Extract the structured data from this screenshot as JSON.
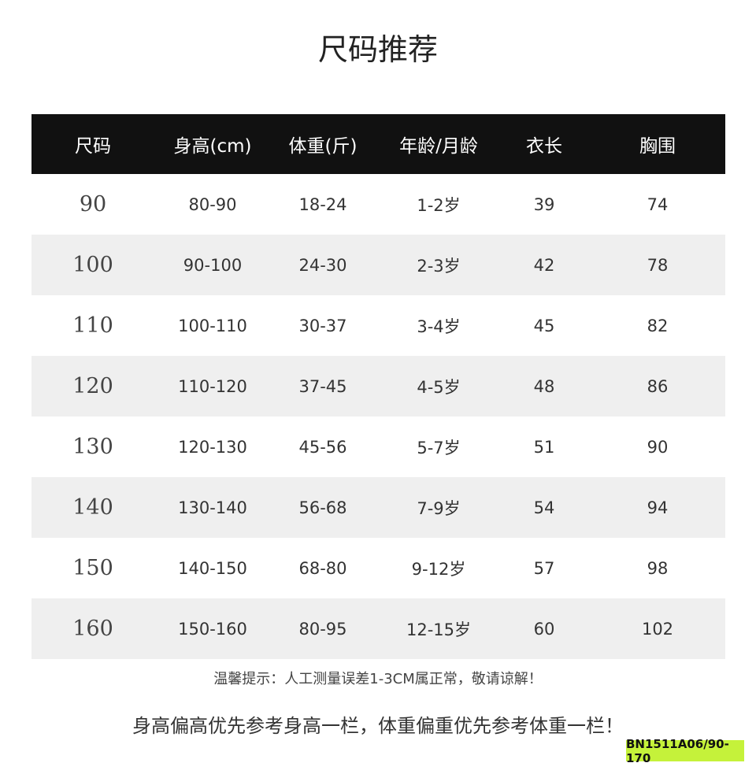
{
  "title": "尺码推荐",
  "headers": [
    "尺码",
    "身高(cm)",
    "体重(斤)",
    "年龄/月龄",
    "衣长",
    "胸围"
  ],
  "rows": [
    [
      "90",
      "80-90",
      "18-24",
      "1-2岁",
      "39",
      "74"
    ],
    [
      "100",
      "90-100",
      "24-30",
      "2-3岁",
      "42",
      "78"
    ],
    [
      "110",
      "100-110",
      "30-37",
      "3-4岁",
      "45",
      "82"
    ],
    [
      "120",
      "110-120",
      "37-45",
      "4-5岁",
      "48",
      "86"
    ],
    [
      "130",
      "120-130",
      "45-56",
      "5-7岁",
      "51",
      "90"
    ],
    [
      "140",
      "130-140",
      "56-68",
      "7-9岁",
      "54",
      "94"
    ],
    [
      "150",
      "140-150",
      "68-80",
      "9-12岁",
      "57",
      "98"
    ],
    [
      "160",
      "150-160",
      "80-95",
      "12-15岁",
      "60",
      "102"
    ]
  ],
  "tip": "温馨提示：人工测量误差1-3CM属正常，敬请谅解！",
  "note": "身高偏高优先参考身高一栏，体重偏重优先参考体重一栏！",
  "badge": "BN1511A06/90-170",
  "colors": {
    "header_bg": "#111111",
    "alt_row": "#efefef",
    "badge": "#c5f23a"
  }
}
